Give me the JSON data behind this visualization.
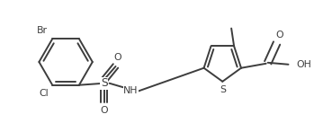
{
  "background_color": "#ffffff",
  "line_color": "#3d3d3d",
  "line_width": 1.4,
  "font_size": 7.8,
  "fig_width": 3.59,
  "fig_height": 1.37,
  "dpi": 100,
  "xlim": [
    0,
    3.59
  ],
  "ylim": [
    0,
    1.37
  ]
}
